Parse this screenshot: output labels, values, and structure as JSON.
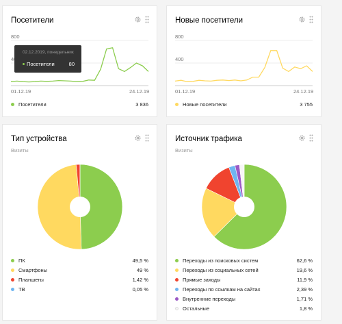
{
  "colors": {
    "green": "#8ccd4e",
    "yellow": "#ffd960",
    "red": "#f0442f",
    "blue": "#6fb5f0",
    "purple": "#9b59c5",
    "white": "#f6f6f6"
  },
  "visitors": {
    "title": "Посетители",
    "legend_label": "Посетители",
    "legend_value": "3 836",
    "tooltip": {
      "date": "02.12.2019, понедельник",
      "label": "Посетители",
      "value": "80"
    }
  },
  "new_visitors": {
    "title": "Новые посетители",
    "legend_label": "Новые посетители",
    "legend_value": "3 755"
  },
  "devices": {
    "title": "Тип устройства",
    "subtitle": "Визиты",
    "items": [
      {
        "label": "ПК",
        "value": "49,5 %"
      },
      {
        "label": "Смартфоны",
        "value": "49 %"
      },
      {
        "label": "Планшеты",
        "value": "1,42 %"
      },
      {
        "label": "ТВ",
        "value": "0,05 %"
      }
    ]
  },
  "traffic": {
    "title": "Источник трафика",
    "subtitle": "Визиты",
    "items": [
      {
        "label": "Переходы из поисковых систем",
        "value": "62,6 %"
      },
      {
        "label": "Переходы из социальных сетей",
        "value": "19,6 %"
      },
      {
        "label": "Прямые заходы",
        "value": "11,9 %"
      },
      {
        "label": "Переходы по ссылкам на сайтах",
        "value": "2,39 %"
      },
      {
        "label": "Внутренние переходы",
        "value": "1,71 %"
      },
      {
        "label": "Остальные",
        "value": "1,8 %"
      }
    ]
  },
  "chart_data": [
    {
      "type": "line",
      "x_start_label": "01.12.19",
      "x_end_label": "24.12.19",
      "y_ticks": [
        "800",
        "400"
      ],
      "ylim": [
        0,
        800
      ],
      "series": [
        {
          "color": "#8ccd4e",
          "values": [
            70,
            80,
            70,
            65,
            70,
            80,
            75,
            80,
            90,
            85,
            80,
            70,
            75,
            100,
            95,
            290,
            650,
            670,
            300,
            250,
            320,
            400,
            350,
            250
          ]
        }
      ]
    },
    {
      "type": "line",
      "x_start_label": "01.12.19",
      "x_end_label": "24.12.19",
      "y_ticks": [
        "800",
        "400"
      ],
      "ylim": [
        0,
        800
      ],
      "series": [
        {
          "color": "#ffd960",
          "values": [
            80,
            95,
            70,
            75,
            95,
            85,
            80,
            95,
            100,
            90,
            100,
            85,
            100,
            150,
            150,
            320,
            620,
            620,
            310,
            250,
            330,
            300,
            350,
            250
          ]
        }
      ]
    },
    {
      "type": "pie",
      "categories": [
        "ПК",
        "Смартфоны",
        "Планшеты",
        "ТВ"
      ],
      "values": [
        49.5,
        49,
        1.42,
        0.05
      ]
    },
    {
      "type": "pie",
      "categories": [
        "Переходы из поисковых систем",
        "Переходы из социальных сетей",
        "Прямые заходы",
        "Переходы по ссылкам на сайтах",
        "Внутренние переходы",
        "Остальные"
      ],
      "values": [
        62.6,
        19.6,
        11.9,
        2.39,
        1.71,
        1.8
      ]
    }
  ]
}
